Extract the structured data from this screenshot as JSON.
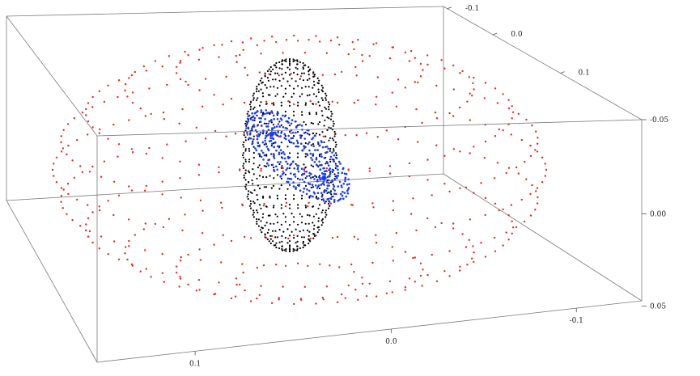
{
  "chart_data": {
    "type": "scatter",
    "dimensions": 3,
    "title": "",
    "grid": false,
    "box": true,
    "legend": "none",
    "axes": {
      "x": {
        "ticks": [
          "0.1",
          "0.0",
          "-0.1"
        ],
        "tick_values": [
          0.1,
          0.0,
          -0.1
        ]
      },
      "y": {
        "ticks": [
          "-0.1",
          "0.0",
          "0.1"
        ],
        "tick_values": [
          -0.1,
          0.0,
          0.1
        ]
      },
      "z": {
        "ticks": [
          "-0.05",
          "0.00",
          "0.05"
        ],
        "tick_values": [
          -0.05,
          0.0,
          0.05
        ]
      }
    },
    "series": [
      {
        "shape": "oblate-shell",
        "color": "#e8281e",
        "semi_axes": [
          0.14,
          0.14,
          0.075
        ],
        "rings": 12
      },
      {
        "shape": "prolate-shell",
        "color": "#000000",
        "semi_axes": [
          0.03,
          0.03,
          0.07
        ],
        "rings": 28
      },
      {
        "shape": "tilted-torus",
        "color": "#1c3cf0",
        "major_radius": 0.025,
        "minor_radius": 0.009,
        "tilt_deg": 40
      }
    ]
  }
}
